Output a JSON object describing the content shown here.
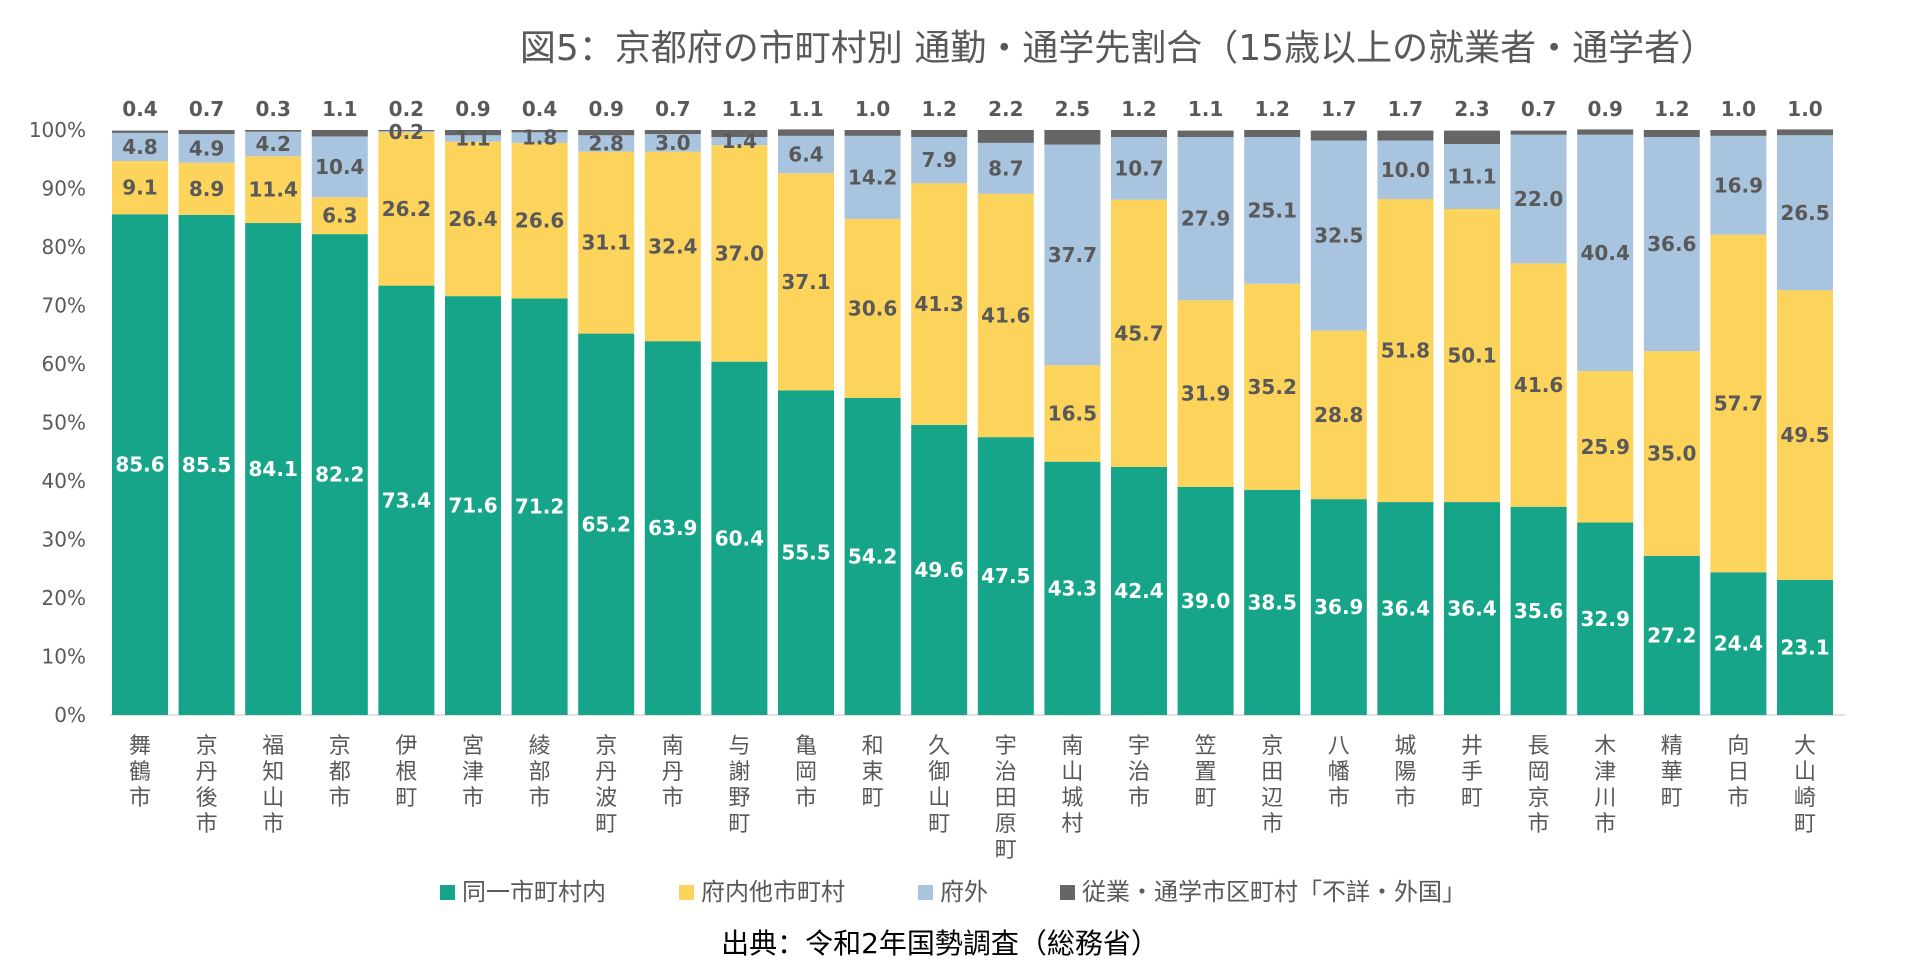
{
  "chart_data": {
    "type": "bar",
    "stacked": true,
    "percent": true,
    "title": "図5：京都府の市町村別 通勤・通学先割合（15歳以上の就業者・通学者）",
    "source": "出典：令和2年国勢調査（総務省）",
    "ylim": [
      0,
      100
    ],
    "y_ticks": [
      "0%",
      "10%",
      "20%",
      "30%",
      "40%",
      "50%",
      "60%",
      "70%",
      "80%",
      "90%",
      "100%"
    ],
    "grid": false,
    "legend_position": "bottom",
    "categories": [
      "舞鶴市",
      "京丹後市",
      "福知山市",
      "京都市",
      "伊根町",
      "宮津市",
      "綾部市",
      "京丹波町",
      "南丹市",
      "与謝野町",
      "亀岡市",
      "和束町",
      "久御山町",
      "宇治田原町",
      "南山城村",
      "宇治市",
      "笠置町",
      "京田辺市",
      "八幡市",
      "城陽市",
      "井手町",
      "長岡京市",
      "木津川市",
      "精華町",
      "向日市",
      "大山崎町"
    ],
    "series": [
      {
        "name": "同一市町村内",
        "color": "#17a589",
        "values": [
          85.6,
          85.5,
          84.1,
          82.2,
          73.4,
          71.6,
          71.2,
          65.2,
          63.9,
          60.4,
          55.5,
          54.2,
          49.6,
          47.5,
          43.3,
          42.4,
          39.0,
          38.5,
          36.9,
          36.4,
          36.4,
          35.6,
          32.9,
          27.2,
          24.4,
          23.1
        ]
      },
      {
        "name": "府内他市町村",
        "color": "#fcd35b",
        "values": [
          9.1,
          8.9,
          11.4,
          6.3,
          26.2,
          26.4,
          26.6,
          31.1,
          32.4,
          37.0,
          37.1,
          30.6,
          41.3,
          41.6,
          16.5,
          45.7,
          31.9,
          35.2,
          28.8,
          51.8,
          50.1,
          41.6,
          25.9,
          35.0,
          57.7,
          49.5
        ]
      },
      {
        "name": "府外",
        "color": "#a9c4de",
        "values": [
          4.8,
          4.9,
          4.2,
          10.4,
          0.2,
          1.1,
          1.8,
          2.8,
          3.0,
          1.4,
          6.4,
          14.2,
          7.9,
          8.7,
          37.7,
          10.7,
          27.9,
          25.1,
          32.5,
          10.0,
          11.1,
          22.0,
          40.4,
          36.6,
          16.9,
          26.5
        ]
      },
      {
        "name": "従業・通学市区町村「不詳・外国」",
        "color": "#666666",
        "values": [
          0.4,
          0.7,
          0.3,
          1.1,
          0.2,
          0.9,
          0.4,
          0.9,
          0.7,
          1.2,
          1.1,
          1.0,
          1.2,
          2.2,
          2.5,
          1.2,
          1.1,
          1.2,
          1.7,
          1.7,
          2.3,
          0.7,
          0.9,
          1.2,
          1.0,
          1.0
        ]
      }
    ]
  }
}
